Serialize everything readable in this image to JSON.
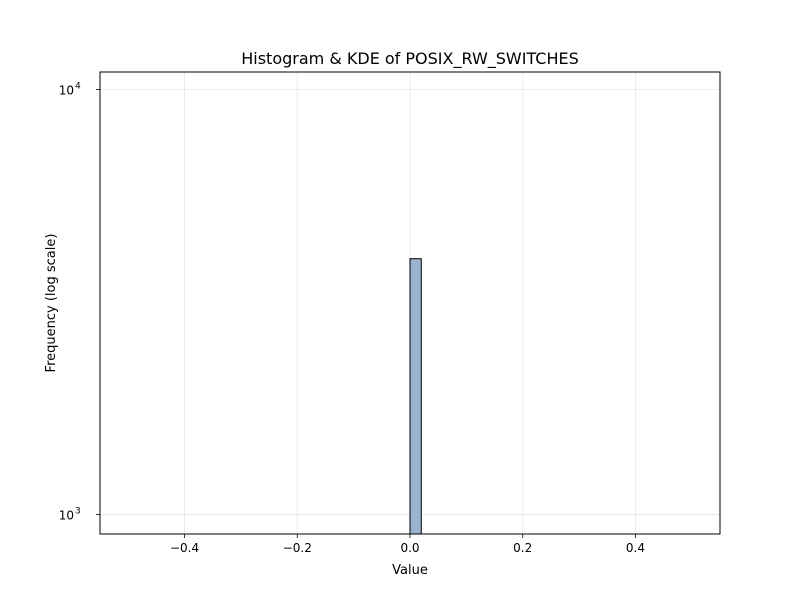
{
  "chart_data": {
    "type": "bar",
    "title": "Histogram & KDE of POSIX_RW_SWITCHES",
    "xlabel": "Value",
    "ylabel": "Frequency (log scale)",
    "xlim": [
      -0.55,
      0.55
    ],
    "ylim": [
      900,
      11000
    ],
    "yscale": "log",
    "grid": true,
    "x_ticks": [
      -0.4,
      -0.2,
      0.0,
      0.2,
      0.4
    ],
    "x_tick_labels": [
      "−0.4",
      "−0.2",
      "0.0",
      "0.2",
      "0.4"
    ],
    "y_ticks": [
      {
        "value": 1000,
        "base": "10",
        "exp": "3"
      },
      {
        "value": 10000,
        "base": "10",
        "exp": "4"
      }
    ],
    "bins": [
      {
        "x0": 0.0,
        "x1": 0.02,
        "count": 4000
      }
    ],
    "bar_color": "#9ab5cf",
    "bar_edge_color": "#000000"
  }
}
